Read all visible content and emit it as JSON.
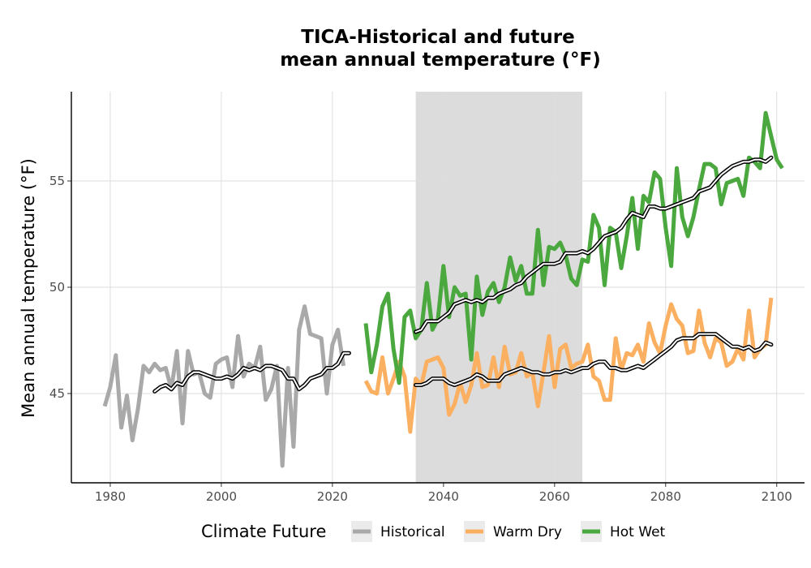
{
  "chart_data": {
    "type": "line",
    "title_line1": "TICA-Historical and future",
    "title_line2": "mean annual temperature (°F)",
    "xlabel": "",
    "ylabel": "Mean annual temperature (°F)",
    "xlim": [
      1973,
      2105
    ],
    "ylim": [
      40.8,
      59.2
    ],
    "x_ticks": [
      1980,
      2000,
      2020,
      2040,
      2060,
      2080,
      2100
    ],
    "y_ticks": [
      45,
      50,
      55
    ],
    "grid": true,
    "shaded_period": [
      2035,
      2065
    ],
    "shade_color": "#dcdcdc",
    "legend": {
      "title": "Climate Future",
      "position": "bottom"
    },
    "series": [
      {
        "name": "Historical",
        "color": "#a9a9a9",
        "x_start": 1979,
        "values": [
          44.4,
          45.3,
          46.8,
          43.4,
          44.9,
          42.8,
          44.3,
          46.3,
          46.0,
          46.4,
          46.1,
          46.2,
          45.2,
          47.0,
          43.6,
          47.0,
          45.9,
          46.0,
          45.0,
          44.8,
          46.4,
          46.6,
          46.7,
          45.3,
          47.7,
          45.8,
          46.4,
          46.2,
          47.2,
          44.7,
          45.2,
          46.3,
          41.6,
          46.2,
          42.5,
          48.0,
          49.1,
          47.8,
          47.7,
          47.6,
          45.0,
          47.3,
          48.0,
          46.3
        ]
      },
      {
        "name": "Historical rolling mean",
        "color": "#000000",
        "x_start": 1988,
        "values": [
          45.1,
          45.3,
          45.4,
          45.2,
          45.5,
          45.4,
          45.8,
          46.0,
          46.0,
          45.9,
          45.8,
          45.7,
          45.7,
          45.8,
          45.7,
          45.9,
          46.2,
          46.1,
          46.2,
          46.1,
          46.3,
          46.3,
          46.2,
          46.1,
          45.7,
          45.7,
          45.2,
          45.4,
          45.7,
          45.8,
          45.9,
          46.2,
          46.2,
          46.4,
          46.9,
          46.9
        ]
      },
      {
        "name": "Warm Dry",
        "color": "#fbb061",
        "x_start": 2026,
        "values": [
          45.6,
          45.1,
          45.0,
          46.7,
          45.0,
          45.7,
          46.5,
          45.8,
          43.2,
          45.7,
          45.4,
          46.5,
          46.6,
          46.7,
          46.2,
          44.0,
          44.5,
          45.5,
          44.6,
          45.4,
          46.9,
          45.3,
          45.4,
          46.7,
          45.3,
          47.2,
          45.9,
          46.0,
          46.9,
          45.8,
          46.0,
          44.4,
          46.0,
          47.7,
          45.3,
          47.1,
          47.3,
          46.2,
          46.4,
          46.5,
          47.3,
          45.8,
          45.6,
          44.7,
          44.7,
          47.6,
          46.1,
          46.9,
          46.8,
          47.3,
          46.5,
          48.3,
          47.4,
          46.9,
          48.2,
          49.2,
          48.5,
          48.2,
          46.9,
          47.0,
          48.9,
          47.4,
          46.7,
          47.6,
          47.4,
          46.3,
          46.5,
          47.1,
          46.6,
          48.9,
          46.7,
          47.1,
          47.3,
          49.5
        ]
      },
      {
        "name": "Warm Dry rolling mean",
        "color": "#000000",
        "x_start": 2035,
        "values": [
          45.4,
          45.4,
          45.5,
          45.7,
          45.7,
          45.7,
          45.5,
          45.4,
          45.5,
          45.6,
          45.7,
          45.9,
          45.8,
          45.6,
          45.6,
          45.6,
          45.9,
          46.0,
          46.1,
          46.2,
          46.1,
          46.0,
          46.0,
          45.9,
          45.9,
          46.0,
          46.0,
          46.1,
          46.0,
          46.1,
          46.2,
          46.2,
          46.4,
          46.5,
          46.5,
          46.2,
          46.2,
          46.1,
          46.1,
          46.2,
          46.3,
          46.2,
          46.4,
          46.6,
          46.8,
          47.0,
          47.2,
          47.5,
          47.6,
          47.6,
          47.6,
          47.8,
          47.8,
          47.8,
          47.8,
          47.6,
          47.4,
          47.2,
          47.2,
          47.1,
          47.2,
          47.0,
          47.1,
          47.4,
          47.3
        ]
      },
      {
        "name": "Hot Wet",
        "color": "#4aa83e",
        "x_start": 2026,
        "values": [
          48.3,
          46.0,
          47.3,
          49.1,
          49.7,
          47.1,
          45.5,
          48.6,
          48.9,
          47.6,
          48.0,
          50.2,
          48.0,
          48.5,
          51.0,
          48.6,
          50.0,
          49.6,
          49.7,
          46.6,
          50.5,
          48.7,
          49.8,
          50.2,
          49.3,
          50.0,
          51.4,
          50.3,
          51.0,
          49.7,
          49.7,
          52.7,
          50.1,
          51.9,
          51.8,
          52.1,
          51.5,
          50.4,
          50.1,
          51.3,
          51.2,
          53.4,
          52.8,
          50.1,
          52.8,
          52.6,
          50.9,
          52.4,
          54.2,
          51.8,
          54.3,
          54.0,
          55.4,
          55.1,
          52.8,
          51.0,
          55.6,
          53.3,
          52.4,
          53.3,
          54.6,
          55.8,
          55.8,
          55.6,
          53.9,
          54.9,
          55.0,
          55.1,
          54.3,
          56.1,
          55.9,
          55.6,
          58.2,
          57.1,
          56.0,
          55.6
        ]
      },
      {
        "name": "Hot Wet rolling mean",
        "color": "#000000",
        "x_start": 2035,
        "values": [
          47.9,
          48.0,
          48.4,
          48.4,
          48.4,
          48.6,
          48.8,
          49.2,
          49.3,
          49.4,
          49.3,
          49.4,
          49.3,
          49.5,
          49.5,
          49.7,
          49.8,
          49.9,
          50.1,
          50.2,
          50.5,
          50.7,
          50.9,
          51.1,
          51.1,
          51.1,
          51.2,
          51.6,
          51.6,
          51.6,
          51.7,
          51.6,
          51.8,
          52.1,
          52.4,
          52.5,
          52.6,
          52.8,
          53.2,
          53.5,
          53.4,
          53.3,
          53.8,
          53.8,
          53.7,
          53.7,
          53.8,
          53.9,
          54.0,
          54.1,
          54.2,
          54.5,
          54.6,
          54.7,
          55.0,
          55.3,
          55.5,
          55.7,
          55.8,
          55.9,
          55.9,
          56.0,
          56.0,
          55.9,
          56.1
        ]
      }
    ]
  }
}
